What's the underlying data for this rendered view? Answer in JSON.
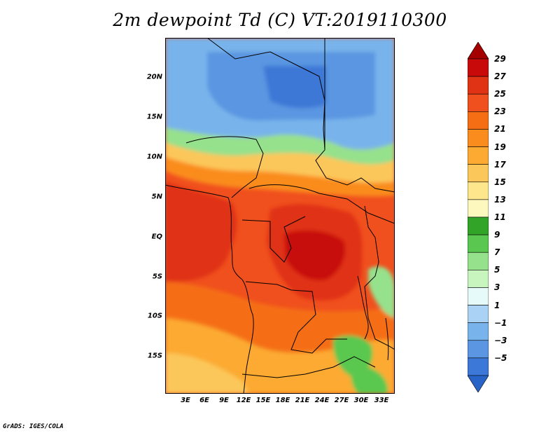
{
  "title": "2m dewpoint Td (C) VT:2019110300",
  "credit": "GrADS: IGES/COLA",
  "map": {
    "lat_labels": [
      "20N",
      "15N",
      "10N",
      "5N",
      "EQ",
      "5S",
      "10S",
      "15S"
    ],
    "lat_values": [
      20,
      15,
      10,
      5,
      0,
      -5,
      -10,
      -15
    ],
    "lon_labels": [
      "3E",
      "6E",
      "9E",
      "12E",
      "15E",
      "18E",
      "21E",
      "24E",
      "27E",
      "30E",
      "33E"
    ],
    "lon_values": [
      3,
      6,
      9,
      12,
      15,
      18,
      21,
      24,
      27,
      30,
      33
    ],
    "lon_range": [
      0.5,
      35
    ],
    "lat_range": [
      -20,
      24.5
    ]
  },
  "colorbar": {
    "labels": [
      "29",
      "27",
      "25",
      "23",
      "21",
      "19",
      "17",
      "15",
      "13",
      "11",
      "9",
      "7",
      "5",
      "3",
      "1",
      "−1",
      "−3",
      "−5"
    ],
    "colors": [
      "#a50000",
      "#c80a0a",
      "#e03214",
      "#f0501e",
      "#f56e14",
      "#fa8c1e",
      "#fcaa32",
      "#fcc75a",
      "#fde68c",
      "#fdf8be",
      "#32a528",
      "#5ac850",
      "#96e18c",
      "#c8f5be",
      "#e6fafa",
      "#aad2f5",
      "#78b4eb",
      "#5a96e1",
      "#3c78d7",
      "#2864c8"
    ]
  }
}
